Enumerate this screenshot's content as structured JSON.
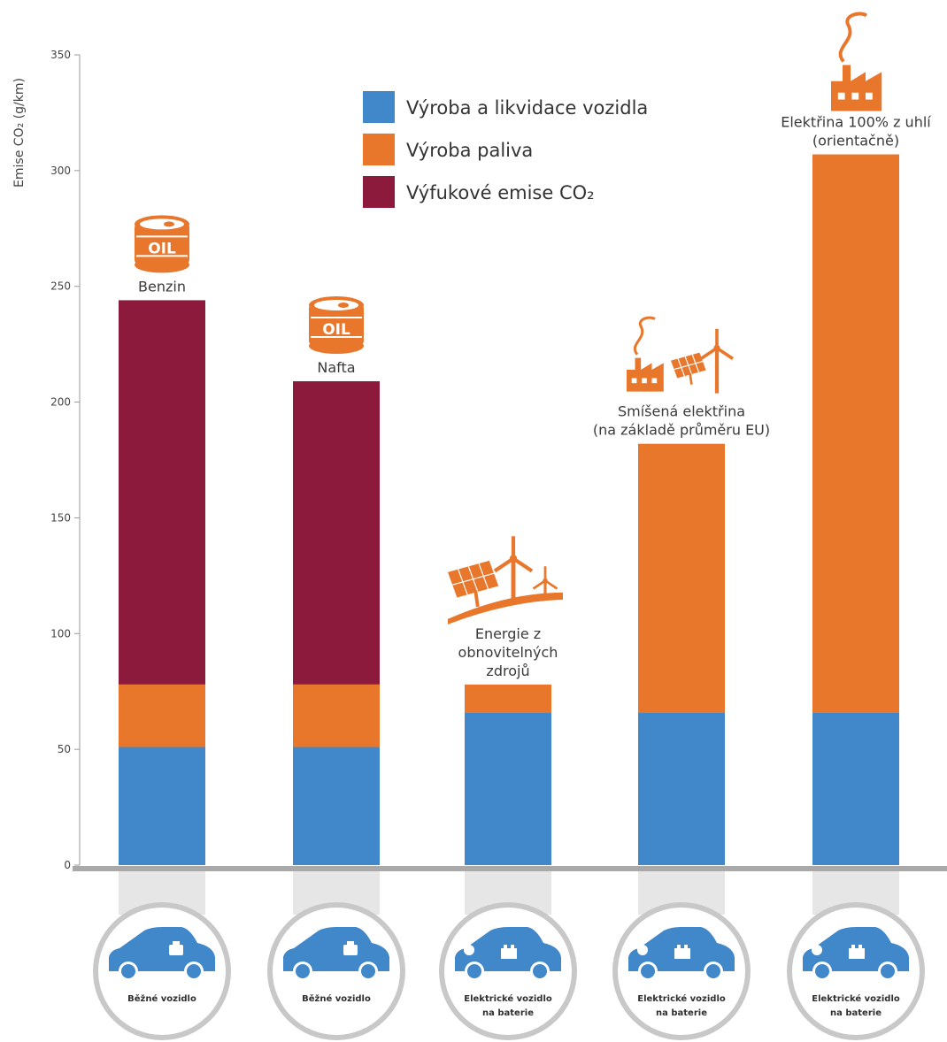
{
  "chart_data": {
    "type": "bar",
    "stacked": true,
    "ylabel": "Emise CO₂ (g/km)",
    "ylim": [
      0,
      350
    ],
    "yticks": [
      0,
      50,
      100,
      150,
      200,
      250,
      300,
      350
    ],
    "grid": false,
    "legend_position": "top-center",
    "categories": [
      {
        "label": "Benzin",
        "vehicle": "Běžné vozidlo",
        "icon": "oil-barrel-icon"
      },
      {
        "label": "Nafta",
        "vehicle": "Běžné vozidlo",
        "icon": "oil-barrel-icon"
      },
      {
        "label": "Energie z obnovitelných zdrojů",
        "label_lines": [
          "Energie z",
          "obnovitelných",
          "zdrojů"
        ],
        "vehicle": "Elektrické vozidlo na baterie",
        "vehicle_lines": [
          "Elektrické vozidlo",
          "na baterie"
        ],
        "icon": "renewables-icon"
      },
      {
        "label": "Smíšená elektřina (na základě průměru EU)",
        "label_lines": [
          "Smíšená elektřina",
          "(na základě průměru EU)"
        ],
        "vehicle": "Elektrické vozidlo na baterie",
        "vehicle_lines": [
          "Elektrické vozidlo",
          "na baterie"
        ],
        "icon": "mixed-power-icon"
      },
      {
        "label": "Elektřina 100% z uhlí (orientačně)",
        "label_lines": [
          "Elektřina 100% z uhlí",
          "(orientačně)"
        ],
        "vehicle": "Elektrické vozidlo na baterie",
        "vehicle_lines": [
          "Elektrické vozidlo",
          "na baterie"
        ],
        "icon": "coal-factory-icon"
      }
    ],
    "series": [
      {
        "name": "Výroba a likvidace vozidla",
        "color": "#4088c9",
        "values": [
          51,
          51,
          66,
          66,
          66
        ]
      },
      {
        "name": "Výroba paliva",
        "color": "#e8762b",
        "values": [
          27,
          27,
          12,
          116,
          241
        ]
      },
      {
        "name": "Výfukové emise CO₂",
        "color": "#8b1a3d",
        "values": [
          166,
          131,
          0,
          0,
          0
        ]
      }
    ]
  }
}
